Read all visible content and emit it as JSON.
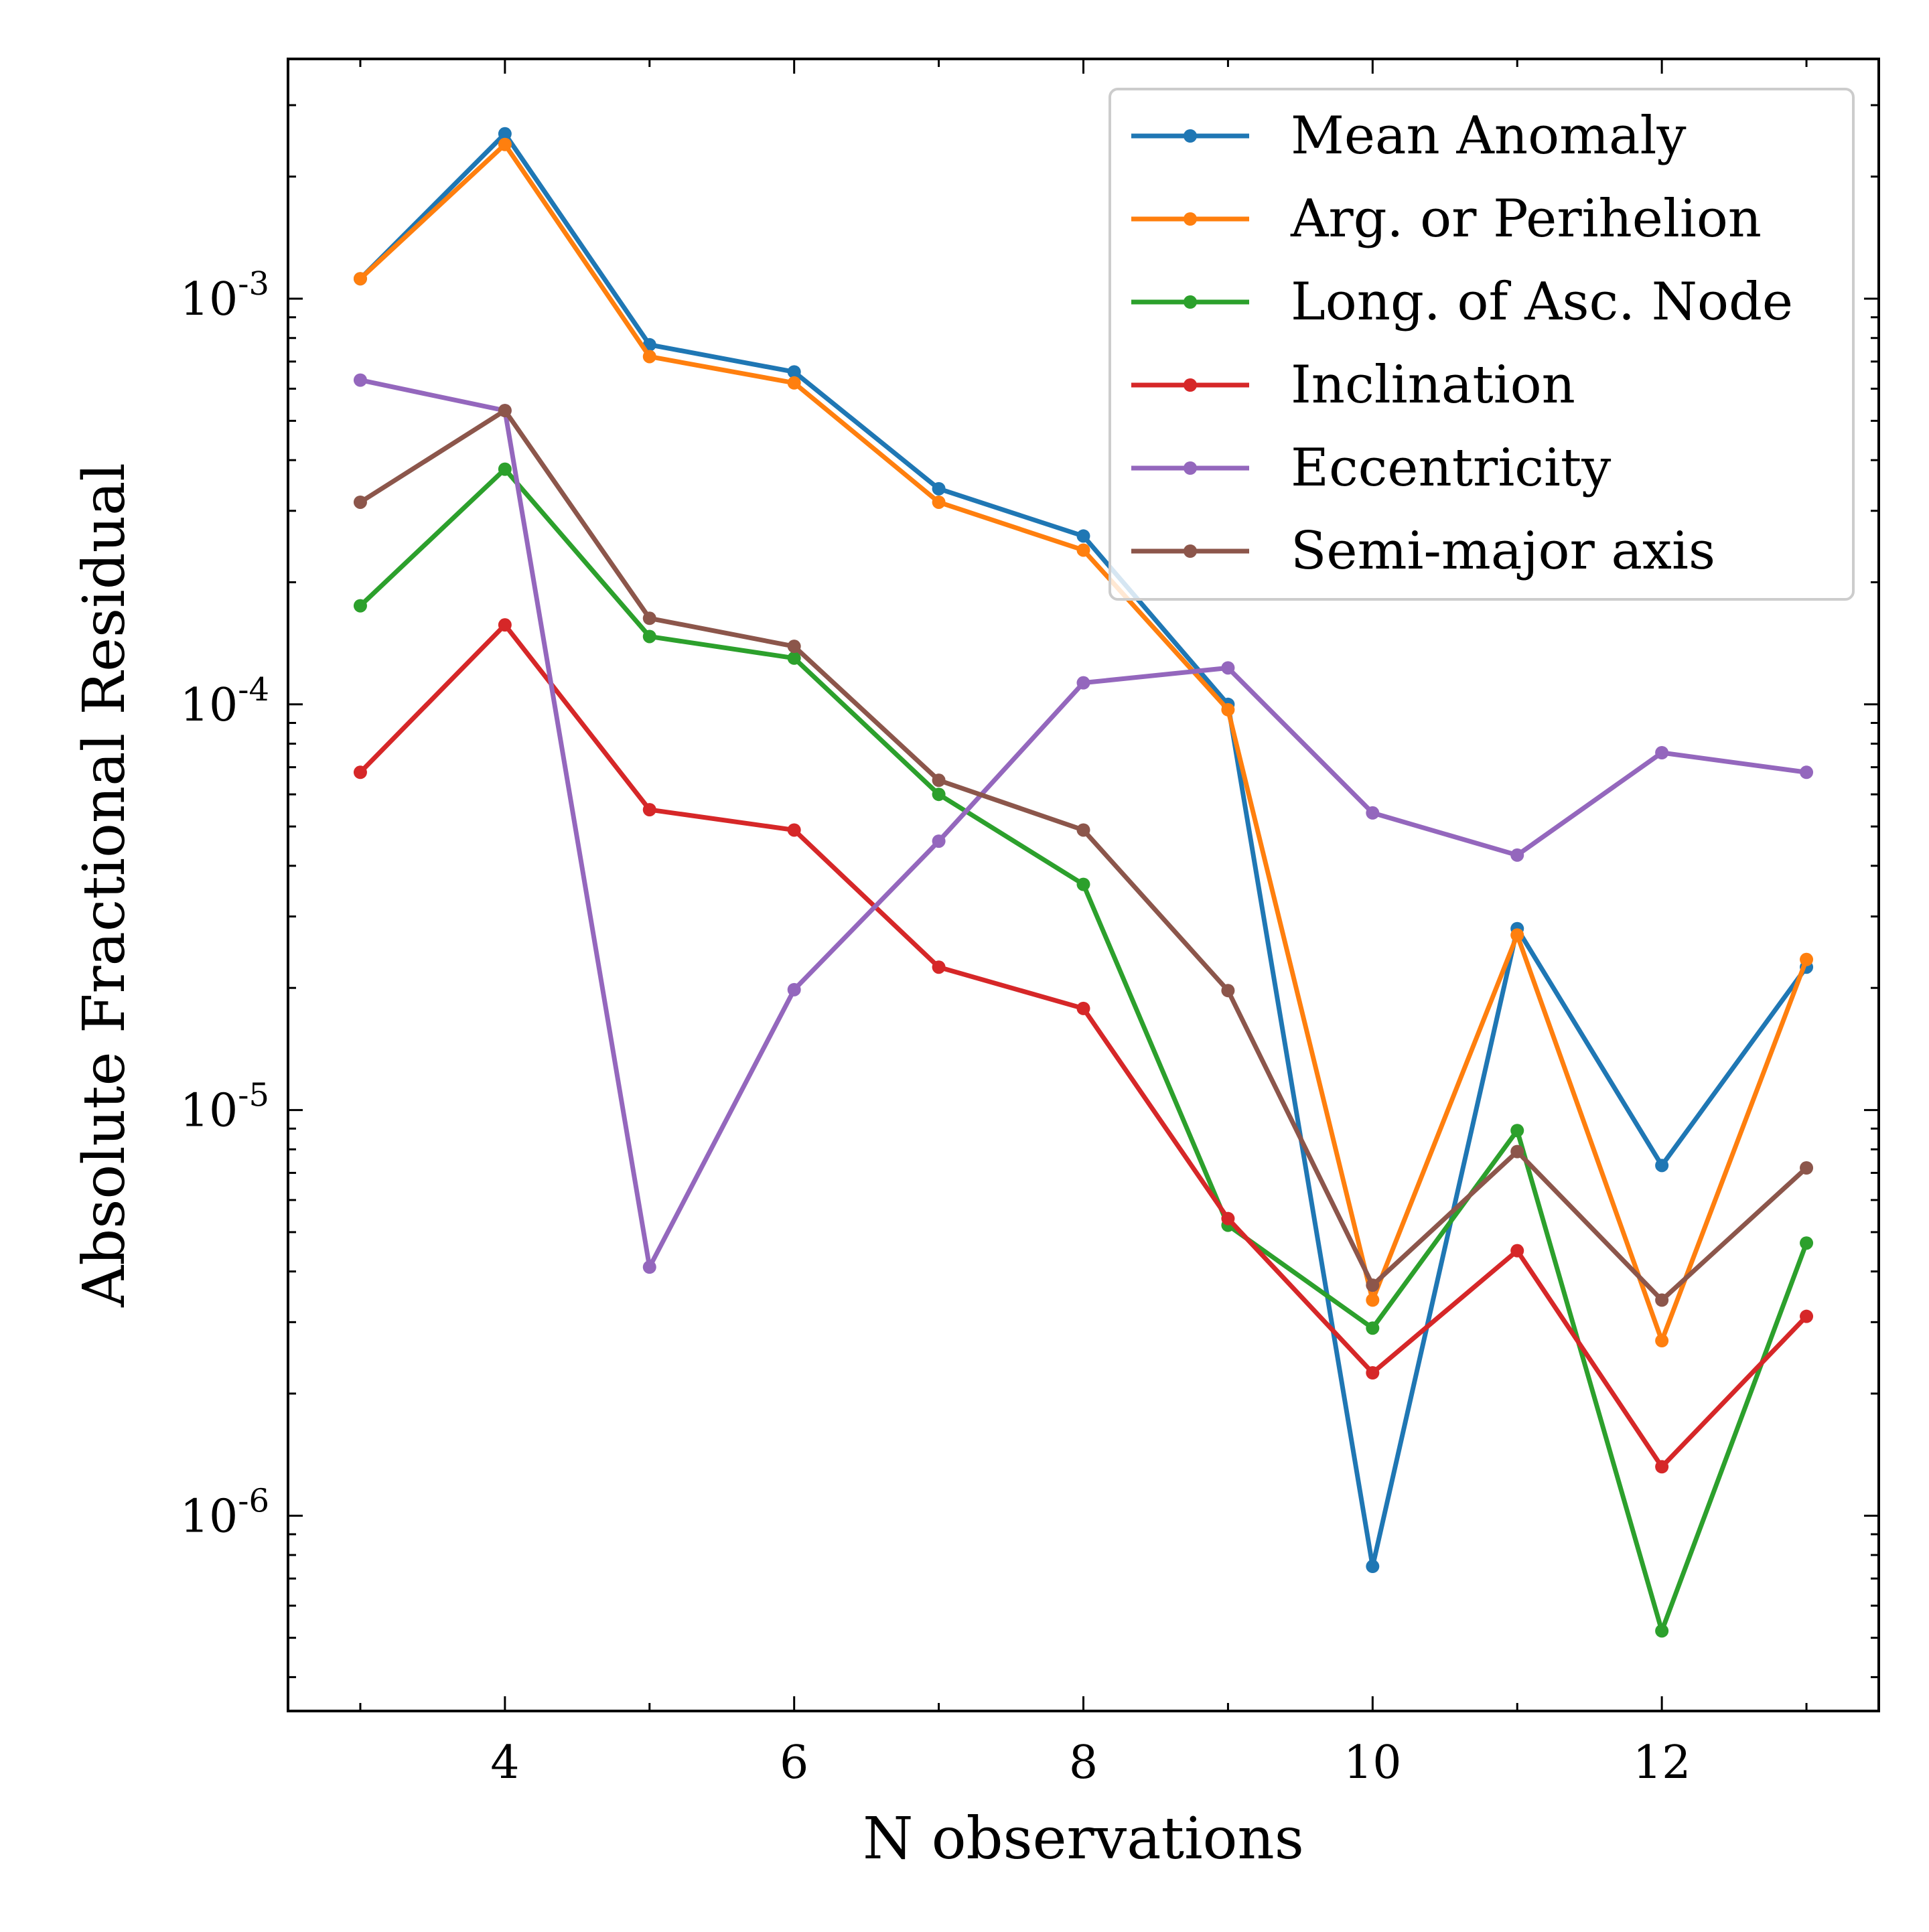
{
  "chart_data": {
    "type": "line",
    "xlabel": "N observations",
    "ylabel": "Absolute Fractional Residual",
    "yscale": "log",
    "xlim": [
      2.5,
      13.5
    ],
    "ylim": [
      3.3e-07,
      0.0039
    ],
    "x": [
      3,
      4,
      5,
      6,
      7,
      8,
      9,
      10,
      11,
      12,
      13
    ],
    "x_ticks": [
      {
        "value": 4,
        "label": "4"
      },
      {
        "value": 6,
        "label": "6"
      },
      {
        "value": 8,
        "label": "8"
      },
      {
        "value": 10,
        "label": "10"
      },
      {
        "value": 12,
        "label": "12"
      }
    ],
    "y_ticks": [
      {
        "value": 0.001,
        "base": "10",
        "exp": "-3"
      },
      {
        "value": 0.0001,
        "base": "10",
        "exp": "-4"
      },
      {
        "value": 1e-05,
        "base": "10",
        "exp": "-5"
      },
      {
        "value": 1e-06,
        "base": "10",
        "exp": "-6"
      }
    ],
    "grid": false,
    "legend_position": "top-right",
    "series": [
      {
        "name": "Mean Anomaly",
        "color": "#1f77b4",
        "values": [
          0.00112,
          0.00255,
          0.00077,
          0.00066,
          0.00034,
          0.00026,
          0.0001,
          7.5e-07,
          2.8e-05,
          7.3e-06,
          2.25e-05
        ]
      },
      {
        "name": "Arg. or Perihelion",
        "color": "#ff7f0e",
        "values": [
          0.00112,
          0.0024,
          0.00072,
          0.00062,
          0.000315,
          0.00024,
          9.7e-05,
          3.4e-06,
          2.7e-05,
          2.7e-06,
          2.35e-05
        ]
      },
      {
        "name": "Long. of Asc. Node",
        "color": "#2ca02c",
        "values": [
          0.000175,
          0.00038,
          0.000147,
          0.00013,
          6e-05,
          3.6e-05,
          5.2e-06,
          2.9e-06,
          8.9e-06,
          5.2e-07,
          4.7e-06
        ]
      },
      {
        "name": "Inclination",
        "color": "#d62728",
        "values": [
          6.8e-05,
          0.000157,
          5.5e-05,
          4.9e-05,
          2.25e-05,
          1.78e-05,
          5.4e-06,
          2.25e-06,
          4.5e-06,
          1.32e-06,
          3.1e-06
        ]
      },
      {
        "name": "Eccentricity",
        "color": "#9467bd",
        "values": [
          0.00063,
          0.00053,
          4.1e-06,
          1.98e-05,
          4.6e-05,
          0.000113,
          0.000123,
          5.4e-05,
          4.25e-05,
          7.6e-05,
          6.8e-05
        ]
      },
      {
        "name": "Semi-major axis",
        "color": "#8c564b",
        "values": [
          0.000315,
          0.00053,
          0.000163,
          0.000139,
          6.5e-05,
          4.9e-05,
          1.97e-05,
          3.7e-06,
          7.9e-06,
          3.4e-06,
          7.2e-06
        ]
      }
    ]
  }
}
